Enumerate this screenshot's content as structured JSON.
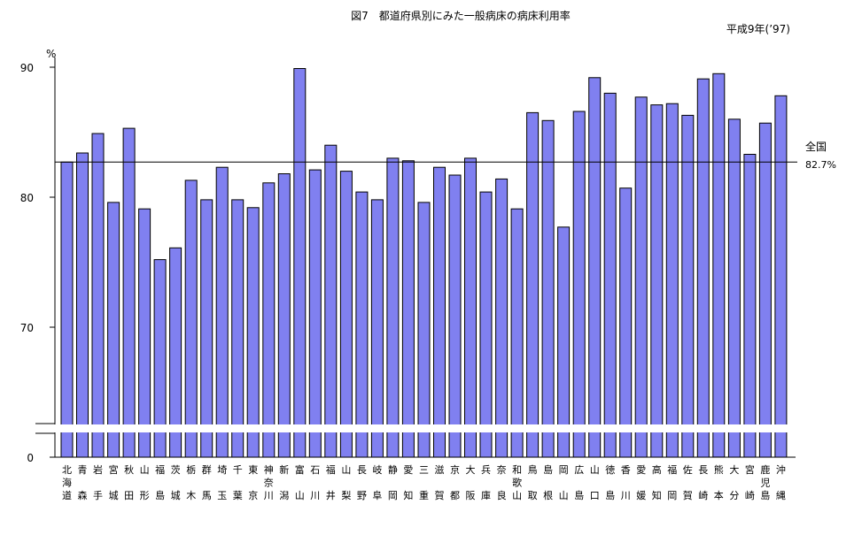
{
  "chart_data": {
    "type": "bar",
    "title": "図7　都道府県別にみた一般病床の病床利用率",
    "subtitle": "平成9年(’97)",
    "ylabel": "%",
    "ylim": [
      60,
      90
    ],
    "axis_break": true,
    "yticks": [
      "90",
      "80",
      "70",
      "0"
    ],
    "reference_line": {
      "label": "全国",
      "value_label": "82.7%",
      "value": 82.7
    },
    "bar_color": "#8080f0",
    "grid": false,
    "categories": [
      "北海道",
      "青森",
      "岩手",
      "宮城",
      "秋田",
      "山形",
      "福島",
      "茨城",
      "栃木",
      "群馬",
      "埼玉",
      "千葉",
      "東京",
      "神奈川",
      "新潟",
      "富山",
      "石川",
      "福井",
      "山梨",
      "長野",
      "岐阜",
      "静岡",
      "愛知",
      "三重",
      "滋賀",
      "京都",
      "大阪",
      "兵庫",
      "奈良",
      "和歌山",
      "鳥取",
      "島根",
      "岡山",
      "広島",
      "山口",
      "徳島",
      "香川",
      "愛媛",
      "高知",
      "福岡",
      "佐賀",
      "長崎",
      "熊本",
      "大分",
      "宮崎",
      "鹿児島",
      "沖縄"
    ],
    "values": [
      82.7,
      83.4,
      84.9,
      79.6,
      85.3,
      79.1,
      75.2,
      76.1,
      81.3,
      79.8,
      82.3,
      79.8,
      79.2,
      81.1,
      81.8,
      89.9,
      82.1,
      84.0,
      82.0,
      80.4,
      79.8,
      83.0,
      82.8,
      79.6,
      82.3,
      81.7,
      83.0,
      80.4,
      81.4,
      79.1,
      86.5,
      85.9,
      77.7,
      86.6,
      89.2,
      88.0,
      80.7,
      87.7,
      87.1,
      87.2,
      86.3,
      89.1,
      89.5,
      86.0,
      83.3,
      85.7,
      87.8
    ]
  }
}
